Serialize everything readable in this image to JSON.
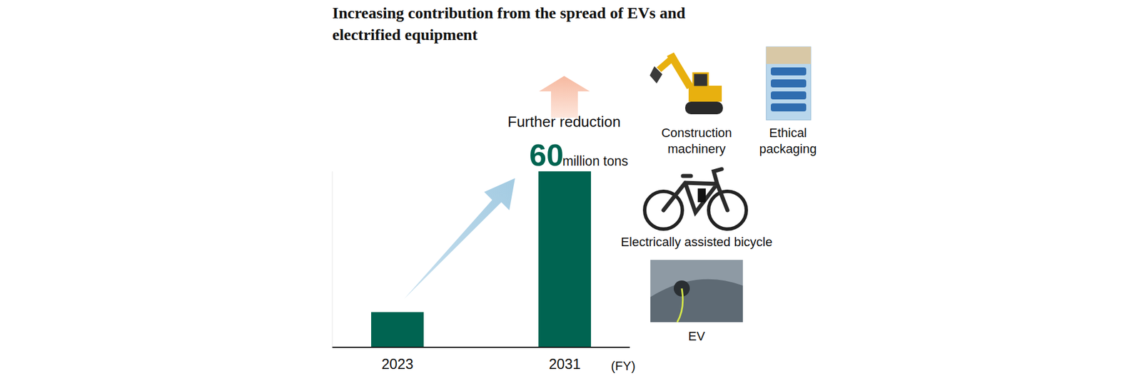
{
  "chart_data": {
    "type": "bar",
    "title": "Increasing contribution from the spread of EVs and electrified equipment",
    "categories": [
      "2023",
      "2031"
    ],
    "values": [
      12,
      60
    ],
    "value_labels": [
      null,
      "60"
    ],
    "data_labels": true,
    "unit": "million tons",
    "annotation": "Further reduction",
    "x_label": "(FY)",
    "color": "#006451",
    "ylim": [
      0,
      60
    ],
    "tick_labels": "x",
    "items": [
      {
        "label": "Construction machinery"
      },
      {
        "label": "Ethical packaging"
      },
      {
        "label": "Electrically assisted bicycle"
      },
      {
        "label": "EV"
      }
    ]
  }
}
